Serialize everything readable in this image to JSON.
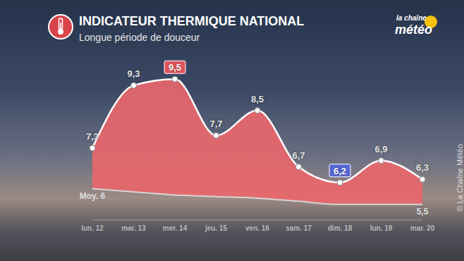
{
  "chart_data": {
    "type": "area",
    "title": "INDICATEUR THERMIQUE NATIONAL",
    "subtitle": "Longue période de douceur",
    "logo": {
      "top": "la chaîne",
      "bottom": "météo"
    },
    "credit": "© La Chaîne Météo",
    "categories": [
      "lun. 12",
      "mar. 13",
      "mer. 14",
      "jeu. 15",
      "ven. 16",
      "sam. 17",
      "dim. 18",
      "lun. 19",
      "mar. 20"
    ],
    "series": [
      {
        "type": "area",
        "color": "#e8676b",
        "marker": "circle",
        "line_style": "solid",
        "values": [
          7.3,
          9.3,
          9.5,
          7.7,
          8.5,
          6.7,
          6.2,
          6.9,
          6.3
        ],
        "value_labels": [
          "7,3",
          "9,3",
          "9,5",
          "7,7",
          "8,5",
          "6,7",
          "6,2",
          "6,9",
          "6,3"
        ]
      },
      {
        "type": "line",
        "color": "#d6d6d6",
        "line_style": "solid",
        "values": [
          6.0,
          5.9,
          5.8,
          5.75,
          5.7,
          5.6,
          5.5,
          5.5,
          5.5
        ],
        "value_labels": [
          "Moy. 6",
          null,
          null,
          null,
          null,
          null,
          null,
          null,
          "5,5"
        ]
      }
    ],
    "ylim": [
      5,
      10
    ],
    "tick_labels": "x",
    "data_labels": true,
    "grid": false
  }
}
